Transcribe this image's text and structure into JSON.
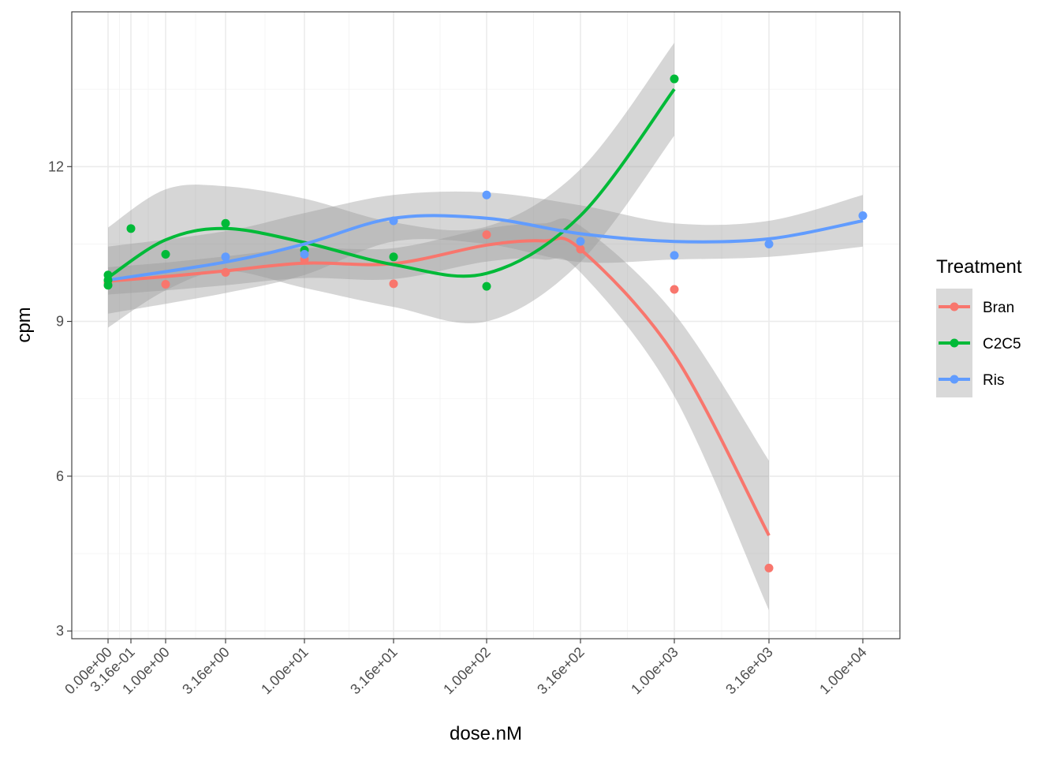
{
  "chart_data": {
    "type": "scatter",
    "title": "",
    "xlabel": "dose.nM",
    "ylabel": "cpm",
    "x_scale": "pseudo-log10",
    "x_ticks": [
      {
        "value": 0,
        "label": "0.00e+00"
      },
      {
        "value": 0.316,
        "label": "3.16e-01"
      },
      {
        "value": 1,
        "label": "1.00e+00"
      },
      {
        "value": 3.16,
        "label": "3.16e+00"
      },
      {
        "value": 10,
        "label": "1.00e+01"
      },
      {
        "value": 31.6,
        "label": "3.16e+01"
      },
      {
        "value": 100,
        "label": "1.00e+02"
      },
      {
        "value": 316,
        "label": "3.16e+02"
      },
      {
        "value": 1000,
        "label": "1.00e+03"
      },
      {
        "value": 3160,
        "label": "3.16e+03"
      },
      {
        "value": 10000,
        "label": "1.00e+04"
      }
    ],
    "y_ticks": [
      {
        "value": 3,
        "label": "3"
      },
      {
        "value": 6,
        "label": "6"
      },
      {
        "value": 9,
        "label": "9"
      },
      {
        "value": 12,
        "label": "12"
      }
    ],
    "ylim": [
      2.85,
      15.0
    ],
    "grid": true,
    "legend": {
      "title": "Treatment",
      "position": "right"
    },
    "series": [
      {
        "name": "Bran",
        "color": "#F8766D",
        "points": [
          {
            "x": 0,
            "y": 9.75
          },
          {
            "x": 1,
            "y": 9.72
          },
          {
            "x": 3.16,
            "y": 9.95
          },
          {
            "x": 10,
            "y": 10.2
          },
          {
            "x": 31.6,
            "y": 9.73
          },
          {
            "x": 100,
            "y": 10.68
          },
          {
            "x": 316,
            "y": 10.4
          },
          {
            "x": 1000,
            "y": 9.62
          },
          {
            "x": 3160,
            "y": 4.22
          }
        ],
        "smooth": [
          {
            "x": 0,
            "y": 9.78,
            "lo": 9.52,
            "hi": 10.05
          },
          {
            "x": 1,
            "y": 9.87,
            "lo": 9.6,
            "hi": 10.14
          },
          {
            "x": 3.16,
            "y": 9.98,
            "lo": 9.7,
            "hi": 10.26
          },
          {
            "x": 10,
            "y": 10.13,
            "lo": 9.84,
            "hi": 10.42
          },
          {
            "x": 31.6,
            "y": 10.12,
            "lo": 9.82,
            "hi": 10.42
          },
          {
            "x": 100,
            "y": 10.48,
            "lo": 10.16,
            "hi": 10.8
          },
          {
            "x": 200,
            "y": 10.56,
            "lo": 10.2,
            "hi": 10.9
          },
          {
            "x": 316,
            "y": 10.4,
            "lo": 9.95,
            "hi": 10.85
          },
          {
            "x": 1000,
            "y": 8.35,
            "lo": 7.55,
            "hi": 9.15
          },
          {
            "x": 3160,
            "y": 4.85,
            "lo": 3.4,
            "hi": 6.3
          }
        ]
      },
      {
        "name": "C2C5",
        "color": "#00BA38",
        "points": [
          {
            "x": 0,
            "y": 9.9
          },
          {
            "x": 0,
            "y": 9.8
          },
          {
            "x": 0,
            "y": 9.7
          },
          {
            "x": 0.316,
            "y": 10.8
          },
          {
            "x": 1,
            "y": 10.3
          },
          {
            "x": 3.16,
            "y": 10.9
          },
          {
            "x": 10,
            "y": 10.38
          },
          {
            "x": 31.6,
            "y": 10.25
          },
          {
            "x": 100,
            "y": 9.68
          },
          {
            "x": 1000,
            "y": 13.7
          }
        ],
        "smooth": [
          {
            "x": 0,
            "y": 9.85,
            "lo": 8.88,
            "hi": 10.82
          },
          {
            "x": 1,
            "y": 10.58,
            "lo": 9.6,
            "hi": 11.56
          },
          {
            "x": 3.16,
            "y": 10.8,
            "lo": 9.98,
            "hi": 11.62
          },
          {
            "x": 10,
            "y": 10.53,
            "lo": 9.65,
            "hi": 11.38
          },
          {
            "x": 31.6,
            "y": 10.1,
            "lo": 9.28,
            "hi": 10.92
          },
          {
            "x": 100,
            "y": 9.93,
            "lo": 9.0,
            "hi": 10.84
          },
          {
            "x": 316,
            "y": 11.05,
            "lo": 10.15,
            "hi": 11.95
          },
          {
            "x": 1000,
            "y": 13.5,
            "lo": 12.6,
            "hi": 14.4
          }
        ]
      },
      {
        "name": "Ris",
        "color": "#619CFF",
        "points": [
          {
            "x": 3.16,
            "y": 10.25
          },
          {
            "x": 10,
            "y": 10.3
          },
          {
            "x": 31.6,
            "y": 10.95
          },
          {
            "x": 100,
            "y": 11.45
          },
          {
            "x": 316,
            "y": 10.55
          },
          {
            "x": 1000,
            "y": 10.28
          },
          {
            "x": 3160,
            "y": 10.5
          },
          {
            "x": 10000,
            "y": 11.05
          }
        ],
        "smooth": [
          {
            "x": 0,
            "y": 9.8,
            "lo": 9.15,
            "hi": 10.45
          },
          {
            "x": 3.16,
            "y": 10.15,
            "lo": 9.55,
            "hi": 10.75
          },
          {
            "x": 10,
            "y": 10.5,
            "lo": 9.9,
            "hi": 11.1
          },
          {
            "x": 31.6,
            "y": 11.0,
            "lo": 10.55,
            "hi": 11.45
          },
          {
            "x": 100,
            "y": 11.0,
            "lo": 10.5,
            "hi": 11.5
          },
          {
            "x": 316,
            "y": 10.7,
            "lo": 10.15,
            "hi": 11.25
          },
          {
            "x": 1000,
            "y": 10.55,
            "lo": 10.2,
            "hi": 10.9
          },
          {
            "x": 3160,
            "y": 10.6,
            "lo": 10.25,
            "hi": 10.95
          },
          {
            "x": 10000,
            "y": 10.95,
            "lo": 10.45,
            "hi": 11.45
          }
        ]
      }
    ]
  }
}
